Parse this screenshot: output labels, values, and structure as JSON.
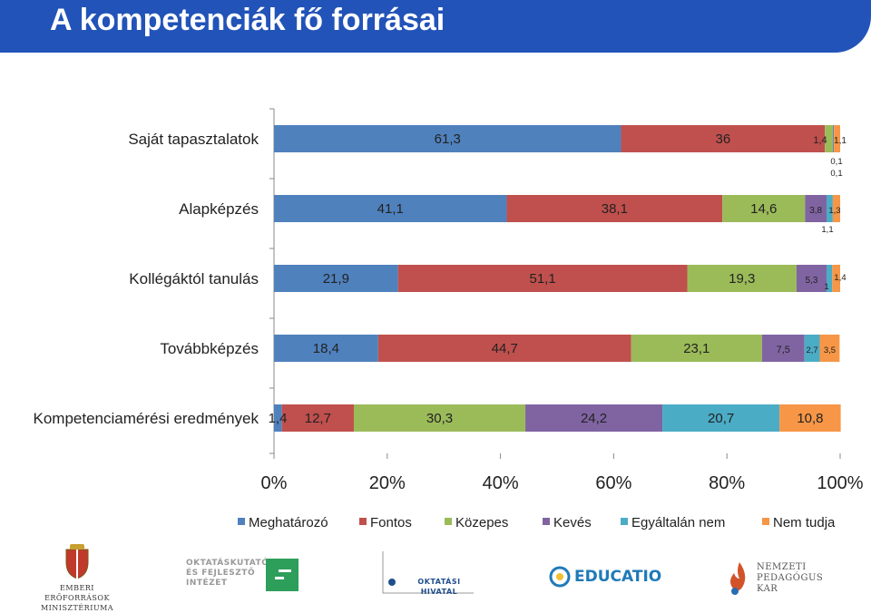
{
  "title": "A kompetenciák fő forrásai",
  "chart_data": {
    "type": "bar",
    "orientation": "horizontal",
    "stacked": "percent",
    "categories": [
      "Saját tapasztalatok",
      "Alapképzés",
      "Kollégáktól tanulás",
      "Továbbképzés",
      "Kompetenciamérési eredmények"
    ],
    "series": [
      {
        "name": "Meghatározó",
        "color": "#4f81bd",
        "values": [
          61.3,
          41.1,
          21.9,
          18.4,
          1.4
        ],
        "labels": [
          "61,3",
          "41,1",
          "21,9",
          "18,4",
          "1,4"
        ]
      },
      {
        "name": "Fontos",
        "color": "#c0504d",
        "values": [
          36,
          38.1,
          51.1,
          44.7,
          12.7
        ],
        "labels": [
          "36",
          "38,1",
          "51,1",
          "44,7",
          "12,7"
        ]
      },
      {
        "name": "Közepes",
        "color": "#9bbb59",
        "values": [
          1.4,
          14.6,
          19.3,
          23.1,
          30.3
        ],
        "labels": [
          "1,4",
          "14,6",
          "19,3",
          "23,1",
          "30,3"
        ]
      },
      {
        "name": "Kevés",
        "color": "#8064a2",
        "values": [
          0.1,
          3.8,
          5.3,
          7.5,
          24.2
        ],
        "labels": [
          "0,1",
          "3,8",
          "5,3",
          "7,5",
          "24,2"
        ]
      },
      {
        "name": "Egyáltalán nem",
        "color": "#4bacc6",
        "values": [
          0.1,
          1.1,
          1,
          2.7,
          20.7
        ],
        "labels": [
          "0,1",
          "1,1",
          "1",
          "2,7",
          "20,7"
        ]
      },
      {
        "name": "Nem tudja",
        "color": "#f79646",
        "values": [
          1.1,
          1.3,
          1.4,
          3.5,
          10.8
        ],
        "labels": [
          "1,1",
          "1,3",
          "1,4",
          "3,5",
          "10,8"
        ]
      }
    ],
    "xlim": [
      0,
      100
    ],
    "x_ticks": [
      "0%",
      "20%",
      "40%",
      "60%",
      "80%",
      "100%"
    ],
    "legend": "bottom"
  },
  "logos": [
    {
      "name": "Emberi Erőforrások Minisztériuma",
      "lines": [
        "EMBERI ERŐFORRÁSOK",
        "MINISZTÉRIUMA"
      ]
    },
    {
      "name": "Oktatáskutató és Fejlesztő Intézet",
      "lines": [
        "OKTATÁSKUTATÓ",
        "ÉS FEJLESZTŐ",
        "INTÉZET"
      ]
    },
    {
      "name": "Oktatási Hivatal",
      "lines": [
        "OKTATÁSI HIVATAL"
      ]
    },
    {
      "name": "Educatio",
      "lines": [
        "EDUCATIO"
      ]
    },
    {
      "name": "Nemzeti Pedagógus Kar",
      "lines": [
        "NEMZETI",
        "PEDAGÓGUS KAR"
      ]
    }
  ]
}
